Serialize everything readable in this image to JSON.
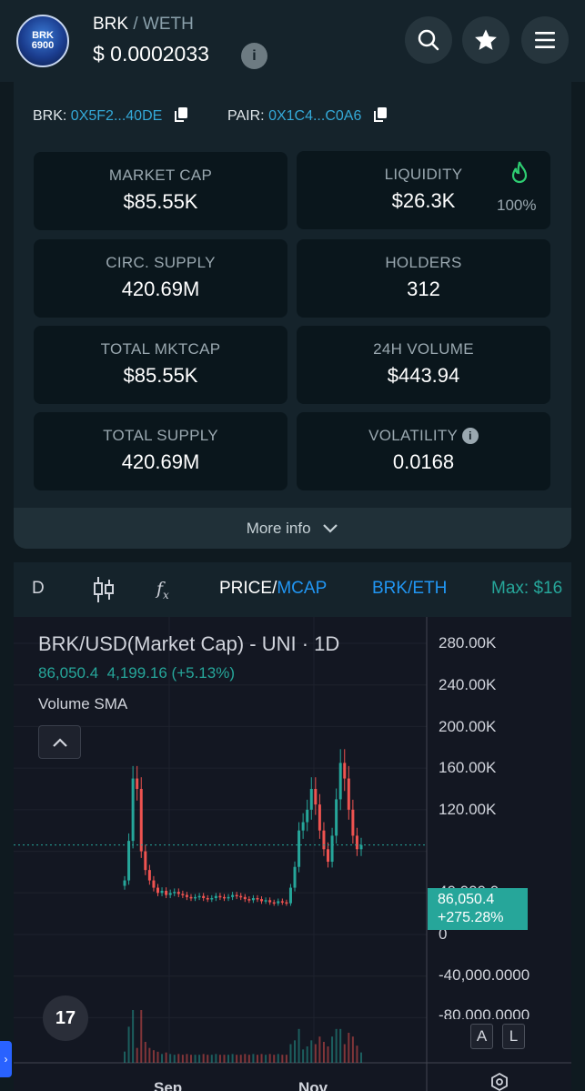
{
  "header": {
    "logo_text_top": "BRK",
    "logo_text_bottom": "6900",
    "base": "BRK",
    "separator": "/",
    "quote": "WETH",
    "price": "$ 0.0002033"
  },
  "addresses": {
    "token_label": "BRK:",
    "token_value": "0X5F2...40DE",
    "pair_label": "PAIR:",
    "pair_value": "0X1C4...C0A6"
  },
  "stats": [
    {
      "title": "MARKET CAP",
      "value": "$85.55K"
    },
    {
      "title": "LIQUIDITY",
      "value": "$26.3K",
      "extra": "100%"
    },
    {
      "title": "CIRC. SUPPLY",
      "value": "420.69M"
    },
    {
      "title": "HOLDERS",
      "value": "312"
    },
    {
      "title": "TOTAL MKTCAP",
      "value": "$85.55K"
    },
    {
      "title": "24H VOLUME",
      "value": "$443.94"
    },
    {
      "title": "TOTAL SUPPLY",
      "value": "420.69M"
    },
    {
      "title": "VOLATILITY",
      "value": "0.0168"
    }
  ],
  "more_info": "More info",
  "toolbar": {
    "interval": "D",
    "price_label": "PRICE",
    "slash": "/",
    "mcap_label": "MCAP",
    "pair_label": "BRK/ETH",
    "max_label": "Max: $16"
  },
  "chart": {
    "title": "BRK/USD(Market Cap) - UNI · 1D",
    "last_value": "86,050.4",
    "change": "4,199.16 (+5.13%)",
    "indicator": "Volume SMA",
    "y_ticks": [
      "280.00K",
      "240.00K",
      "200.00K",
      "160.00K",
      "120.00K",
      "40,000.0",
      "0",
      "-40,000.0000",
      "-80,000.0000"
    ],
    "tag_value": "86,050.4",
    "tag_change": "+275.28%",
    "x_ticks": [
      "Sep",
      "Nov"
    ],
    "btn_a": "A",
    "btn_l": "L",
    "tv_logo": "17"
  },
  "colors": {
    "accent": "#34a9d8",
    "up": "#26a69a",
    "down": "#ef5350",
    "liquidity_icon": "#2ecc71"
  },
  "chart_data": {
    "type": "candlestick",
    "title": "BRK/USD(Market Cap) - UNI · 1D",
    "ylim": [
      -80000,
      300000
    ],
    "x_labels": [
      "Sep",
      "Nov"
    ],
    "series": [
      {
        "name": "Market Cap",
        "values": [
          52000,
          90000,
          150000,
          140000,
          80000,
          62000,
          52000,
          45000,
          40000,
          42000,
          38000,
          40000,
          41000,
          39000,
          38000,
          36000,
          35000,
          36000,
          37000,
          35000,
          34000,
          35000,
          37000,
          36000,
          35000,
          36000,
          38000,
          37000,
          36000,
          34000,
          33000,
          35000,
          34000,
          32000,
          33000,
          31000,
          30000,
          32000,
          31000,
          30000,
          45000,
          65000,
          100000,
          108000,
          120000,
          140000,
          125000,
          100000,
          82000,
          70000,
          95000,
          130000,
          165000,
          150000,
          120000,
          95000,
          82000,
          86050
        ]
      }
    ]
  }
}
